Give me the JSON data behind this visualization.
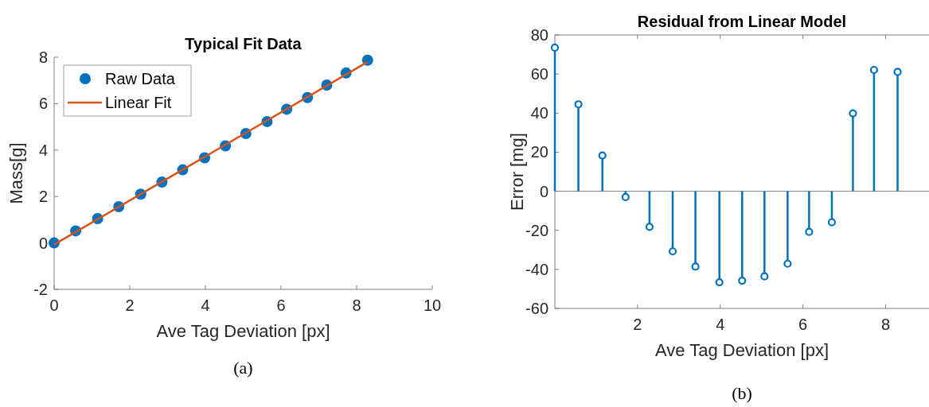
{
  "chart_data": [
    {
      "type": "scatter",
      "title": "Typical Fit Data",
      "xlabel": "Ave Tag Deviation [px]",
      "ylabel": "Mass[g]",
      "xlim": [
        0,
        10
      ],
      "xticks": [
        0,
        2,
        4,
        6,
        8,
        10
      ],
      "ylim": [
        -2,
        8
      ],
      "yticks": [
        -2,
        0,
        2,
        4,
        6,
        8
      ],
      "legend": "top left",
      "annotations": [
        "(a)"
      ],
      "series": [
        {
          "name": "Raw Data",
          "type": "scatter",
          "marker": "circle",
          "color": "#0072bd",
          "x": [
            0,
            0.57,
            1.15,
            1.71,
            2.29,
            2.85,
            3.4,
            3.98,
            4.53,
            5.07,
            5.63,
            6.15,
            6.7,
            7.21,
            7.72,
            8.29
          ],
          "values": [
            0,
            0.52,
            1.05,
            1.56,
            2.1,
            2.62,
            3.15,
            3.67,
            4.18,
            4.71,
            5.23,
            5.76,
            6.26,
            6.8,
            7.32,
            7.87
          ]
        },
        {
          "name": "Linear Fit",
          "type": "line",
          "marker": "none",
          "color": "#d95319",
          "x": [
            0,
            8.29
          ],
          "values": [
            -0.07,
            7.8
          ]
        }
      ]
    },
    {
      "type": "lollipop",
      "title": "Residual from Linear Model",
      "xlabel": "Ave Tag Deviation [px]",
      "ylabel": "Error [mg]",
      "xlim": [
        0,
        9.05
      ],
      "xticks": [
        2,
        4,
        6,
        8
      ],
      "ylim": [
        -60,
        80
      ],
      "yticks": [
        -60,
        -40,
        -20,
        0,
        20,
        40,
        60,
        80
      ],
      "marker": "circle",
      "annotations": [
        "(b)"
      ],
      "series": [
        {
          "color": "#0072bd",
          "x": [
            0,
            0.57,
            1.15,
            1.71,
            2.29,
            2.85,
            3.4,
            3.98,
            4.53,
            5.07,
            5.63,
            6.15,
            6.7,
            7.21,
            7.72,
            8.29
          ],
          "values": [
            73.5,
            44.5,
            18.3,
            -3,
            -18.2,
            -30.8,
            -38.6,
            -46.6,
            -45.8,
            -43.6,
            -37.1,
            -20.8,
            -15.9,
            39.9,
            62.1,
            61.1
          ]
        }
      ]
    }
  ]
}
